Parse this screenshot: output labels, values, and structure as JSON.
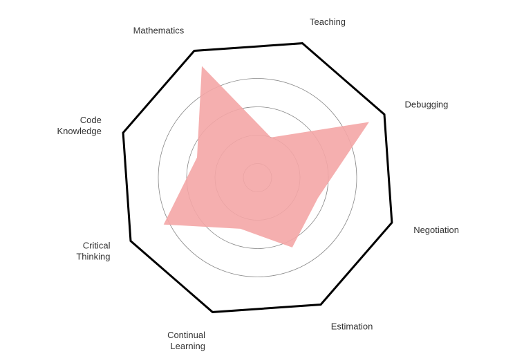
{
  "chart_data": {
    "type": "radar",
    "title": "",
    "axes": [
      {
        "label": [
          "Teaching"
        ]
      },
      {
        "label": [
          "Debugging"
        ]
      },
      {
        "label": [
          "Negotiation"
        ]
      },
      {
        "label": [
          "Estimation"
        ]
      },
      {
        "label": [
          "Continual",
          "Learning"
        ]
      },
      {
        "label": [
          "Critical",
          "Thinking"
        ]
      },
      {
        "label": [
          "Code",
          "Knowledge"
        ]
      },
      {
        "label": [
          "Mathematics"
        ]
      }
    ],
    "range": [
      0,
      10
    ],
    "rings": [
      1,
      3,
      5,
      7
    ],
    "series": [
      {
        "values": [
          3,
          8.8,
          4.5,
          5.5,
          3.8,
          7.4,
          4.5,
          8.8
        ],
        "color": "#f4a6a6"
      }
    ],
    "frame_color": "#000000",
    "ring_color": "#888888",
    "grid": true
  }
}
